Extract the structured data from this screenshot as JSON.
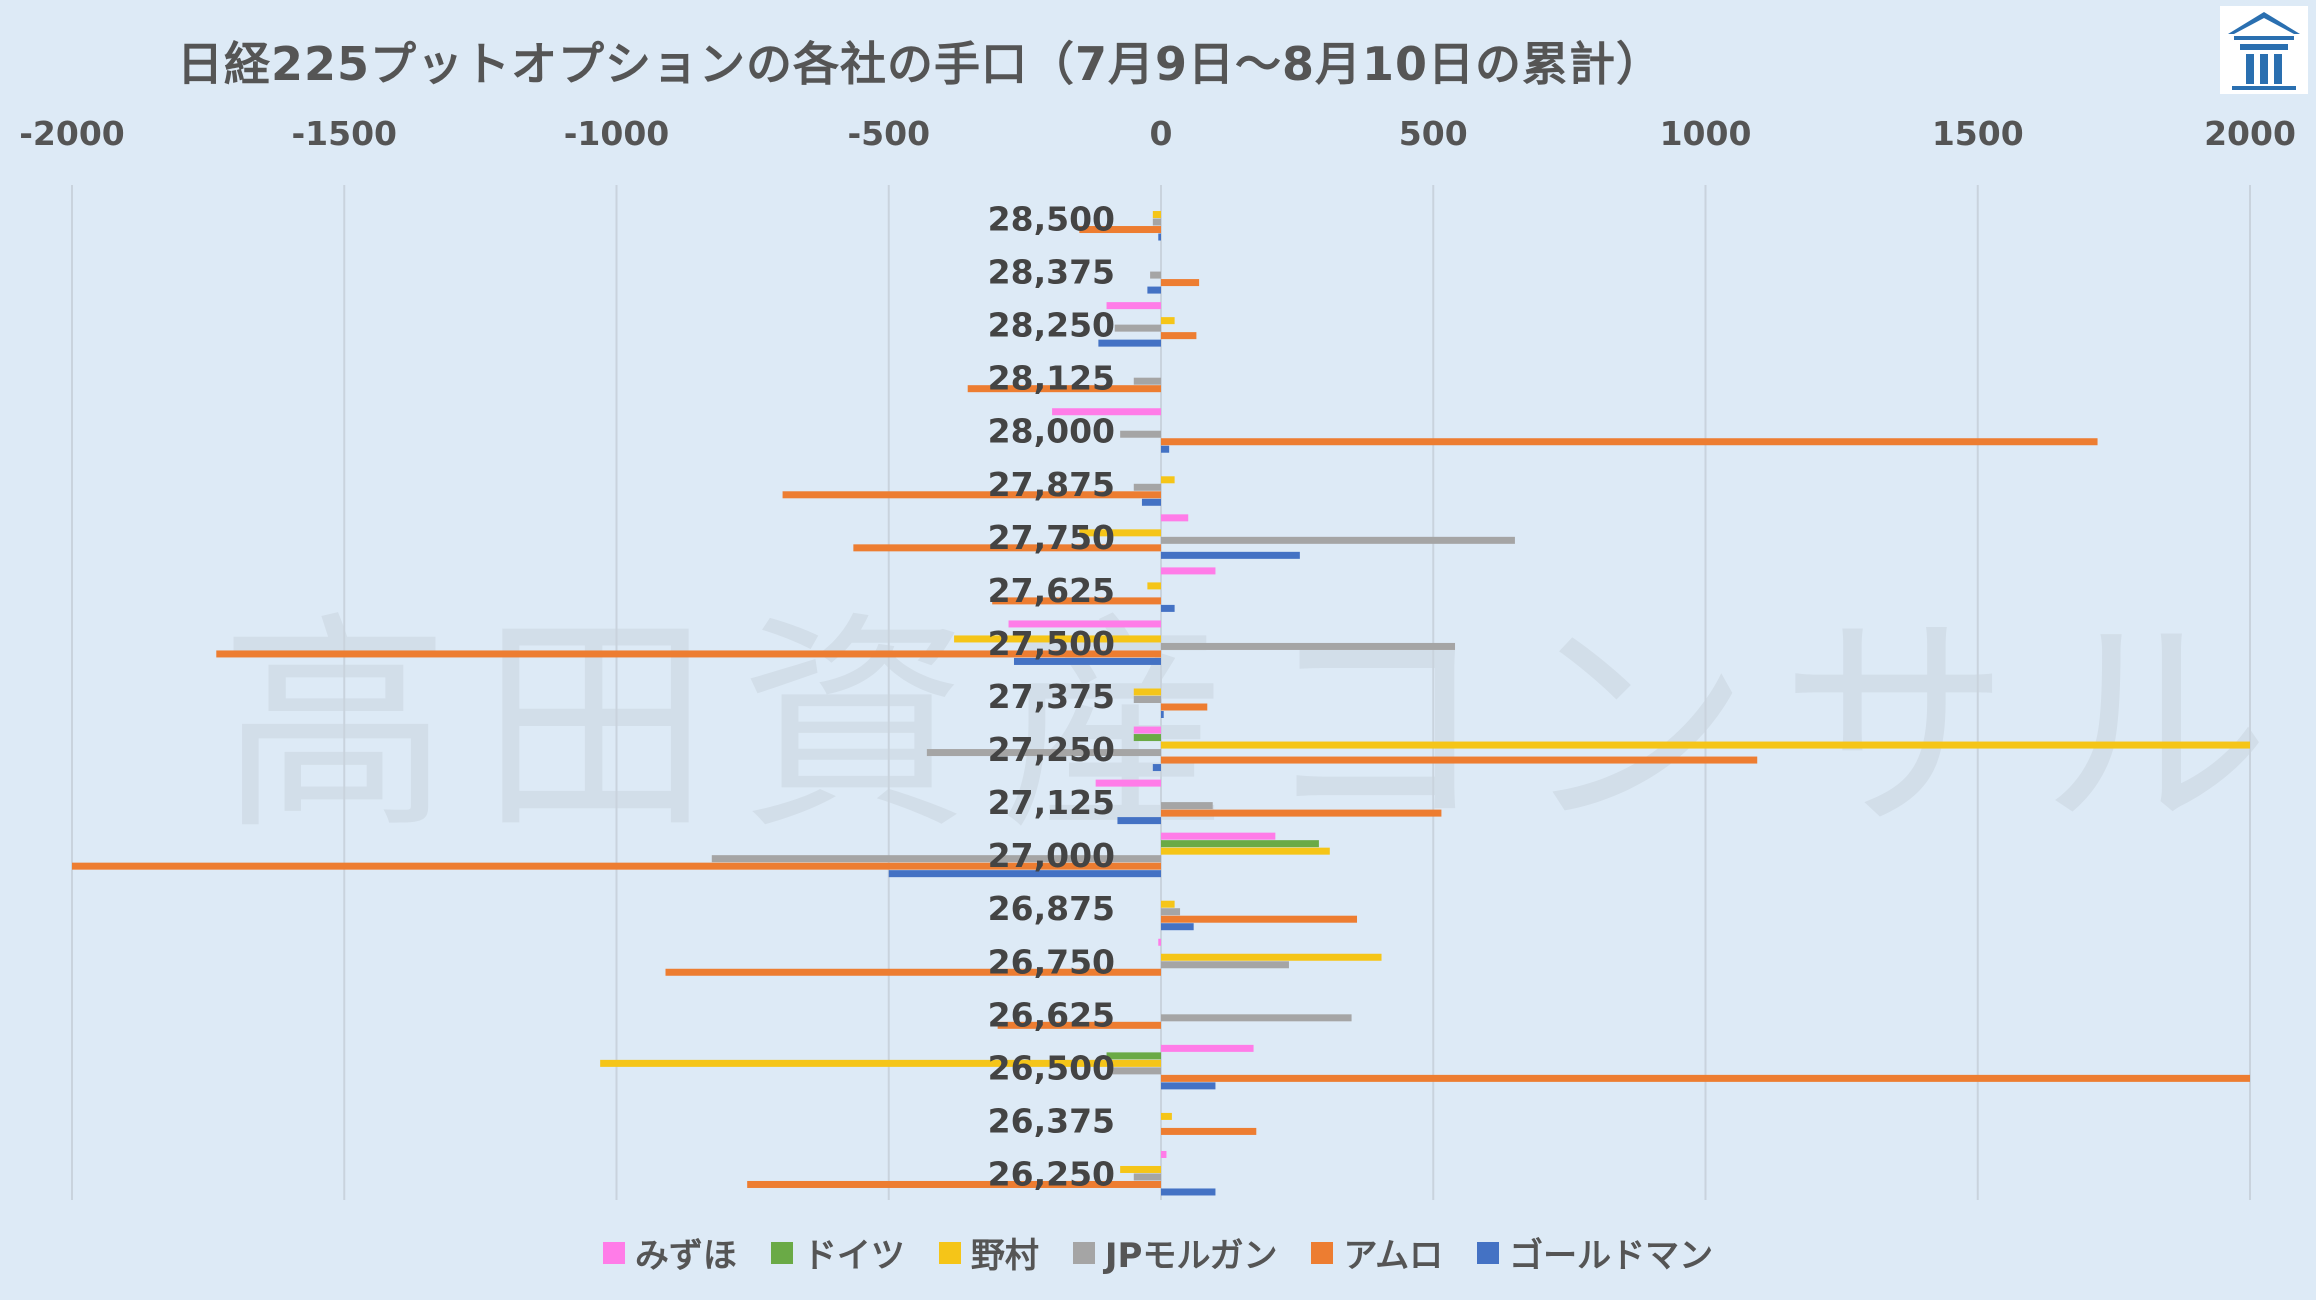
{
  "title": "日経225プットオプションの各社の手口（7月9日～8月10日の累計）",
  "watermark": "高田資産コンサル",
  "logo_icon": "building-logo-icon",
  "chart_data": {
    "type": "bar",
    "orientation": "horizontal",
    "xlim": [
      -2000,
      2000
    ],
    "xticks": [
      -2000,
      -1500,
      -1000,
      -500,
      0,
      500,
      1000,
      1500,
      2000
    ],
    "x_axis_position": "top",
    "grid": true,
    "legend_position": "bottom",
    "categories": [
      "28,500",
      "28,375",
      "28,250",
      "28,125",
      "28,000",
      "27,875",
      "27,750",
      "27,625",
      "27,500",
      "27,375",
      "27,250",
      "27,125",
      "27,000",
      "26,875",
      "26,750",
      "26,625",
      "26,500",
      "26,375",
      "26,250"
    ],
    "series": [
      {
        "name": "みずほ",
        "color": "#ff7ce8",
        "values": [
          0,
          0,
          -100,
          0,
          -200,
          0,
          50,
          100,
          -280,
          0,
          -50,
          -120,
          210,
          0,
          -5,
          0,
          170,
          0,
          10
        ]
      },
      {
        "name": "ドイツ",
        "color": "#6aaa46",
        "values": [
          0,
          0,
          0,
          0,
          0,
          0,
          0,
          0,
          0,
          0,
          -50,
          0,
          290,
          0,
          0,
          0,
          -100,
          0,
          0
        ]
      },
      {
        "name": "野村",
        "color": "#f5c518",
        "values": [
          -15,
          0,
          25,
          0,
          0,
          25,
          -150,
          -25,
          -380,
          -50,
          2000,
          0,
          310,
          25,
          405,
          0,
          -1030,
          20,
          -75
        ]
      },
      {
        "name": "JPモルガン",
        "color": "#a5a5a5",
        "values": [
          -15,
          -20,
          -85,
          -50,
          -75,
          -50,
          650,
          0,
          540,
          -50,
          -430,
          95,
          -825,
          35,
          235,
          350,
          -90,
          0,
          -50
        ]
      },
      {
        "name": "アムロ",
        "color": "#ed7d31",
        "values": [
          -150,
          70,
          65,
          -355,
          1720,
          -695,
          -565,
          -310,
          -1735,
          85,
          1095,
          515,
          -2000,
          360,
          -910,
          -300,
          2000,
          175,
          -760
        ]
      },
      {
        "name": "ゴールドマン",
        "color": "#4472c4",
        "values": [
          -5,
          -25,
          -115,
          0,
          15,
          -35,
          255,
          25,
          -270,
          5,
          -15,
          -80,
          -500,
          60,
          0,
          0,
          100,
          0,
          100
        ]
      }
    ]
  }
}
